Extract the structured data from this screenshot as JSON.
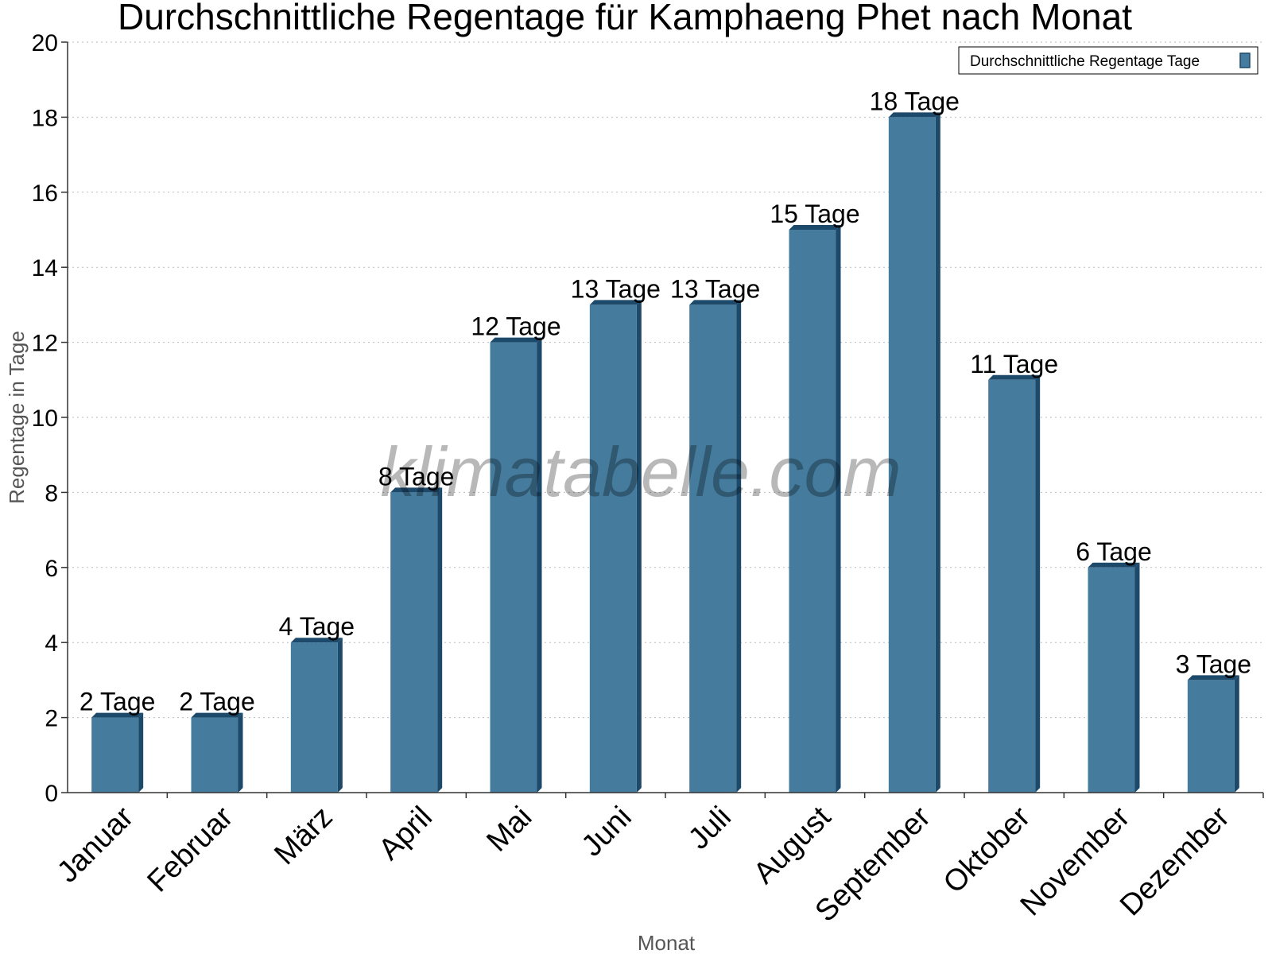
{
  "chart_data": {
    "type": "bar",
    "title": "Durchschnittliche Regentage für Kamphaeng Phet nach Monat",
    "xlabel": "Monat",
    "ylabel": "Regentage in Tage",
    "ylim": [
      0,
      20
    ],
    "yticks": [
      0,
      2,
      4,
      6,
      8,
      10,
      12,
      14,
      16,
      18,
      20
    ],
    "grid": true,
    "legend_position": "top-right",
    "categories": [
      "Januar",
      "Februar",
      "März",
      "April",
      "Mai",
      "Juni",
      "Juli",
      "August",
      "September",
      "Oktober",
      "November",
      "Dezember"
    ],
    "series": [
      {
        "name": "Durchschnittliche Regentage Tage",
        "values": [
          2,
          2,
          4,
          8,
          12,
          13,
          13,
          15,
          18,
          11,
          6,
          3
        ],
        "labels": [
          "2 Tage",
          "2 Tage",
          "4 Tage",
          "8 Tage",
          "12 Tage",
          "13 Tage",
          "13 Tage",
          "15 Tage",
          "18 Tage",
          "11 Tage",
          "6 Tage",
          "3 Tage"
        ],
        "color": "#457b9d",
        "side_color": "#1d4a6b"
      }
    ],
    "watermark": "klimatabelle.com"
  }
}
